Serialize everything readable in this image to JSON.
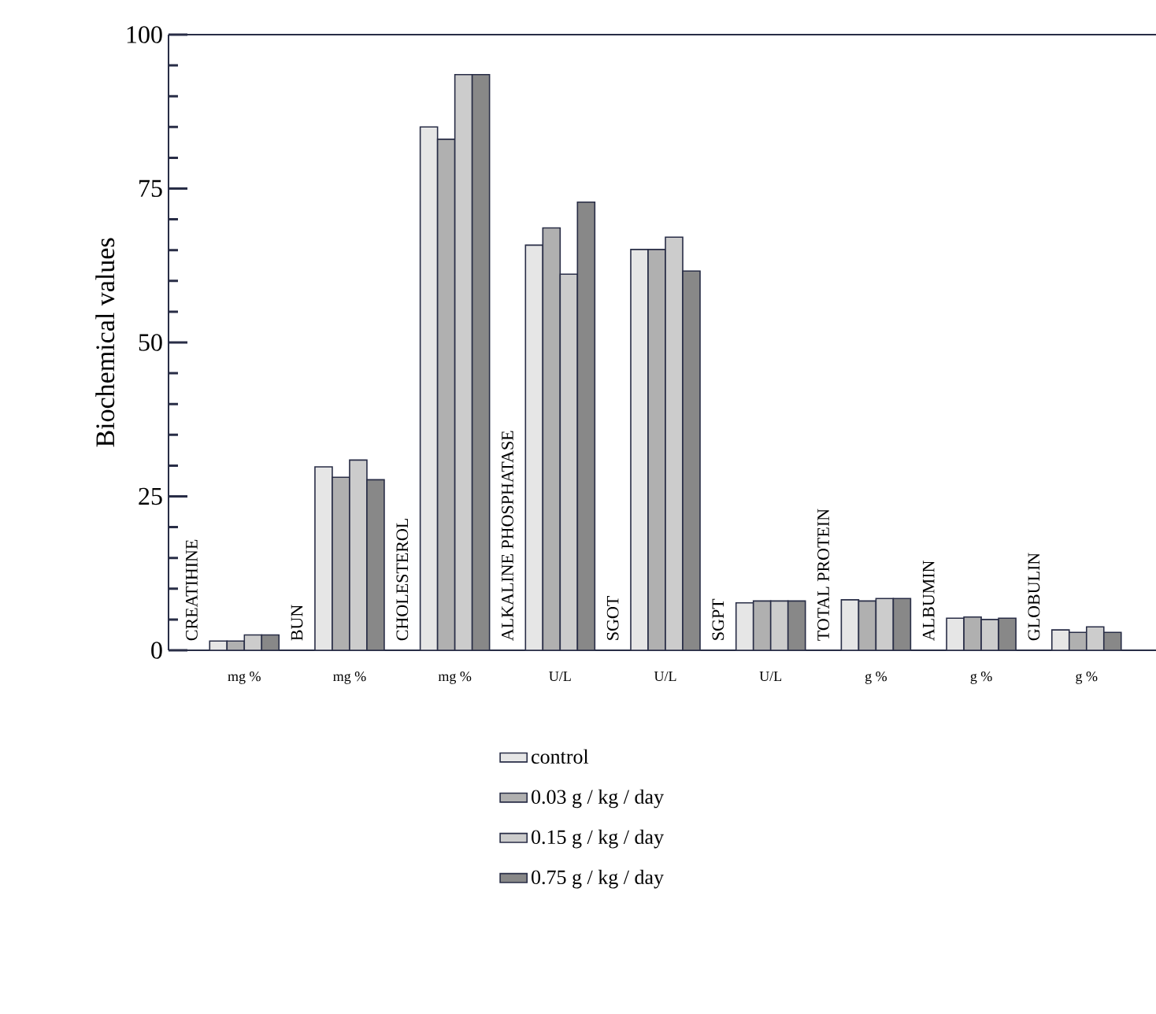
{
  "chart_data": {
    "type": "bar",
    "ylabel": "Biochemical values",
    "categories": [
      "mg %",
      "mg %",
      "mg %",
      "U/L",
      "U/L",
      "U/L",
      "g %",
      "g %",
      "g %"
    ],
    "annotations": [
      "CREATIHINE",
      "BUN",
      "CHOLESTEROL",
      "ALKALINE PHOSPHATASE",
      "SGOT",
      "SGPT",
      "TOTAL PROTEIN",
      "ALBUMIN",
      "GLOBULIN"
    ],
    "series": [
      {
        "name": "control",
        "color": "#e6e6e6",
        "values": [
          1.5,
          29.8,
          85,
          65.8,
          65.1,
          7.7,
          8.2,
          5.2,
          3.3
        ]
      },
      {
        "name": "0.03 g / kg / day",
        "color": "#b0b0b0",
        "values": [
          1.5,
          28.1,
          83,
          68.6,
          65.1,
          8,
          8,
          5.4,
          2.9
        ]
      },
      {
        "name": "0.15 g / kg / day",
        "color": "#cccccc",
        "values": [
          2.5,
          30.9,
          93.5,
          61.1,
          67.1,
          8,
          8.4,
          5,
          3.8
        ]
      },
      {
        "name": "0.75 g / kg / day",
        "color": "#888888",
        "values": [
          2.5,
          27.7,
          93.5,
          72.8,
          61.6,
          8,
          8.4,
          5.2,
          2.9
        ]
      }
    ],
    "ylim": [
      0,
      100
    ],
    "yticks": [
      0,
      {
        "value": 5,
        "label": null
      },
      {
        "value": 10,
        "label": null
      },
      {
        "value": 15,
        "label": null
      },
      {
        "value": 20,
        "label": null
      },
      25,
      {
        "value": 30,
        "label": null
      },
      {
        "value": 35,
        "label": null
      },
      {
        "value": 40,
        "label": null
      },
      {
        "value": 45,
        "label": null
      },
      50,
      {
        "value": 55,
        "label": null
      },
      {
        "value": 60,
        "label": null
      },
      {
        "value": 65,
        "label": null
      },
      {
        "value": 70,
        "label": null
      },
      75,
      {
        "value": 80,
        "label": null
      },
      {
        "value": 85,
        "label": null
      },
      {
        "value": 90,
        "label": null
      },
      {
        "value": 95,
        "label": null
      },
      100
    ],
    "legend": "bottom"
  }
}
